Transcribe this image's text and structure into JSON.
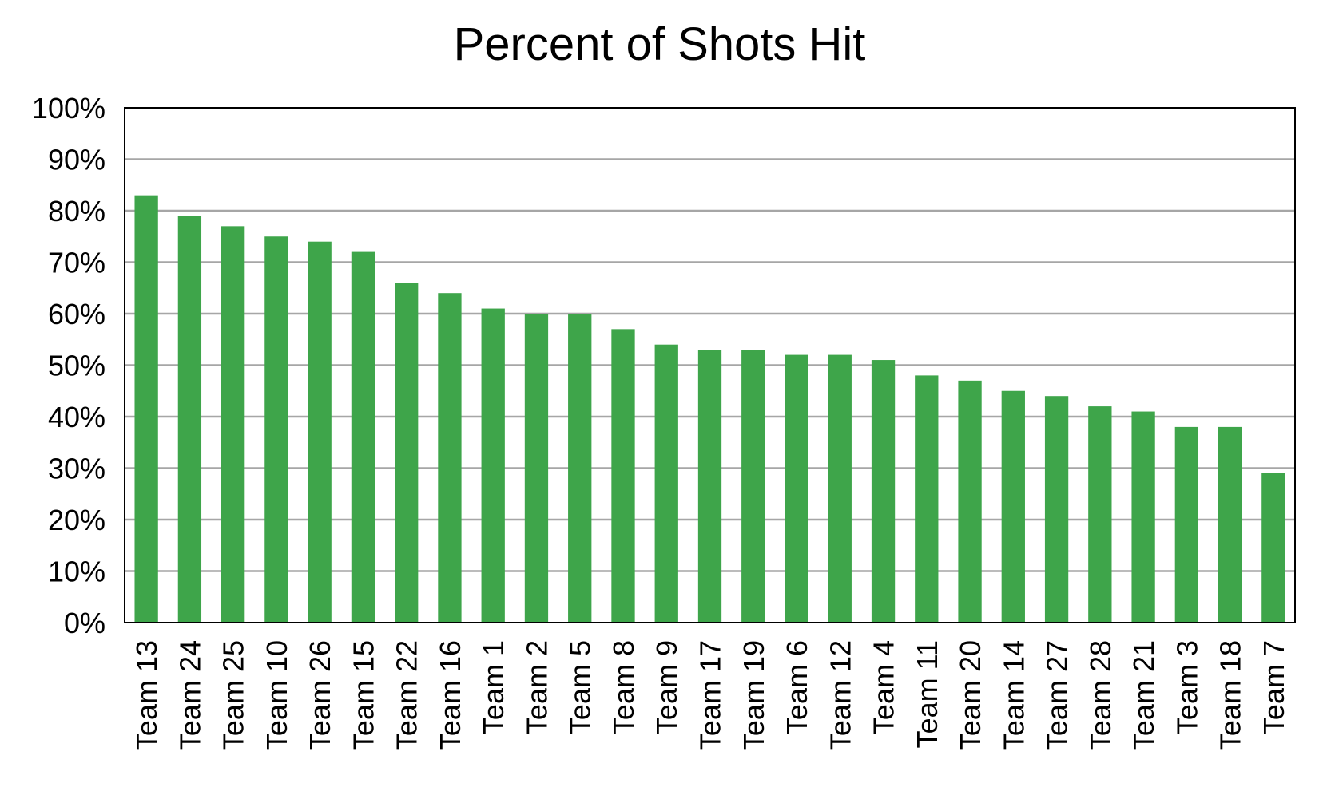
{
  "chart_data": {
    "type": "bar",
    "title": "Percent of Shots Hit",
    "xlabel": "",
    "ylabel": "",
    "ylim": [
      0,
      100
    ],
    "y_ticks": [
      "0%",
      "10%",
      "20%",
      "30%",
      "40%",
      "50%",
      "60%",
      "70%",
      "80%",
      "90%",
      "100%"
    ],
    "y_tick_values": [
      0,
      10,
      20,
      30,
      40,
      50,
      60,
      70,
      80,
      90,
      100
    ],
    "grid": true,
    "bar_color": "#3ea54a",
    "categories": [
      "Team 13",
      "Team 24",
      "Team 25",
      "Team 10",
      "Team 26",
      "Team 15",
      "Team 22",
      "Team 16",
      "Team 1",
      "Team 2",
      "Team 5",
      "Team 8",
      "Team 9",
      "Team 17",
      "Team 19",
      "Team 6",
      "Team 12",
      "Team 4",
      "Team 11",
      "Team 20",
      "Team 14",
      "Team 27",
      "Team 28",
      "Team 21",
      "Team 3",
      "Team 18",
      "Team 7"
    ],
    "values": [
      83,
      79,
      77,
      75,
      74,
      72,
      66,
      64,
      61,
      60,
      60,
      57,
      54,
      53,
      53,
      52,
      52,
      51,
      48,
      47,
      45,
      44,
      42,
      41,
      38,
      38,
      29
    ]
  }
}
